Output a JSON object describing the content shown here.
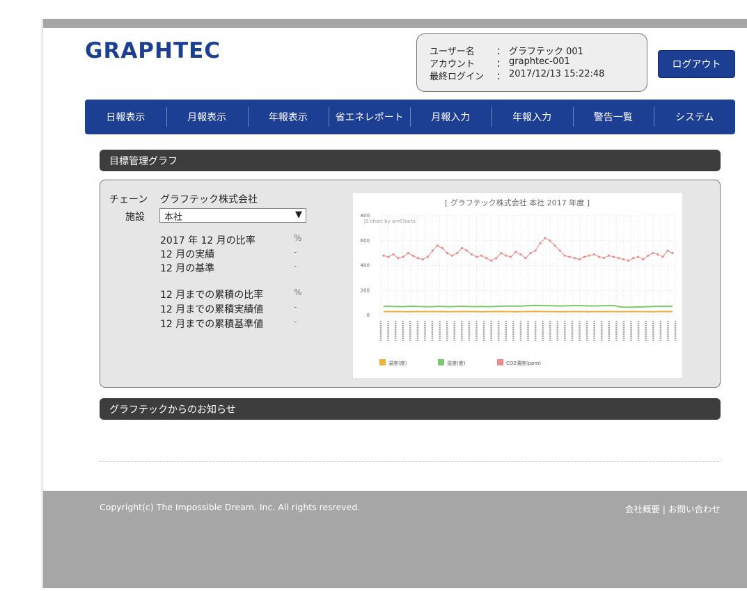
{
  "header": {
    "logo": "GRAPHTEC",
    "user": [
      {
        "label": "ユーザー名",
        "sep": "：",
        "value": "グラフテック 001"
      },
      {
        "label": "アカウント",
        "sep": "：",
        "value": "graphtec-001"
      },
      {
        "label": "最終ログイン",
        "sep": "：",
        "value": "2017/12/13 15:22:48"
      }
    ],
    "logout": "ログアウト"
  },
  "nav": [
    "日報表示",
    "月報表示",
    "年報表示",
    "省エネレポート",
    "月報入力",
    "年報入力",
    "警告一覧",
    "システム"
  ],
  "target_section": {
    "title": "目標管理グラフ",
    "chain_label": "チェーン",
    "chain_value": "グラフテック株式会社",
    "facility_label": "施設",
    "facility_value": "本社",
    "facility_arrow": "▼",
    "rows": [
      [
        "2017 年 12 月の比率",
        "%"
      ],
      [
        "12 月の実績",
        "-"
      ],
      [
        "12 月の基準",
        "-"
      ],
      [
        "12 月までの累積の比率",
        "%"
      ],
      [
        "12 月までの累積実績値",
        "-"
      ],
      [
        "12 月までの累積基準値",
        "-"
      ]
    ]
  },
  "chart_data": {
    "type": "line",
    "title": "[ グラフテック株式会社 本社 2017 年度 ]",
    "credit": "JS chart by amCharts",
    "ylim": [
      0,
      800
    ],
    "yticks": [
      0,
      200,
      400,
      600,
      800
    ],
    "grid": true,
    "series": [
      {
        "name": "温度(度)",
        "color": "#f2b13c",
        "values": [
          30,
          30,
          31,
          30,
          30,
          29,
          30,
          31,
          30,
          30,
          31,
          30,
          30,
          29,
          30,
          30,
          31,
          30,
          30,
          30,
          29,
          30,
          30,
          31,
          30,
          30,
          30,
          29,
          30,
          30,
          31,
          32,
          31,
          30,
          30,
          30,
          29,
          30,
          30,
          31,
          30,
          30,
          29,
          30,
          30,
          31,
          30,
          30,
          29,
          30,
          30,
          31,
          30,
          30,
          30,
          29,
          30,
          31,
          30,
          30
        ]
      },
      {
        "name": "湿度(度)",
        "color": "#7cc96d",
        "values": [
          72,
          73,
          71,
          70,
          70,
          72,
          73,
          71,
          70,
          69,
          70,
          72,
          71,
          70,
          70,
          72,
          73,
          72,
          70,
          70,
          71,
          70,
          70,
          72,
          73,
          74,
          75,
          74,
          74,
          76,
          78,
          80,
          79,
          78,
          77,
          76,
          75,
          76,
          77,
          78,
          78,
          77,
          76,
          75,
          76,
          77,
          78,
          78,
          70,
          66,
          65,
          66,
          67,
          68,
          70,
          71,
          72,
          73,
          72,
          73
        ]
      },
      {
        "name": "CO2濃度(ppm)",
        "color": "#f08a8a",
        "values": [
          480,
          470,
          490,
          460,
          470,
          500,
          480,
          460,
          450,
          470,
          520,
          560,
          540,
          500,
          480,
          500,
          540,
          520,
          490,
          470,
          480,
          460,
          440,
          460,
          500,
          480,
          470,
          510,
          490,
          460,
          500,
          520,
          580,
          620,
          600,
          560,
          520,
          480,
          470,
          460,
          450,
          470,
          480,
          490,
          470,
          460,
          480,
          470,
          460,
          450,
          440,
          460,
          470,
          450,
          480,
          500,
          490,
          470,
          520,
          500
        ]
      }
    ]
  },
  "notice_section": {
    "title": "グラフテックからのお知らせ"
  },
  "footer": {
    "copyright": "Copyright(c) The Impossible Dream. Inc. All rights resreved.",
    "links": "会社概要 | お問い合わせ"
  }
}
